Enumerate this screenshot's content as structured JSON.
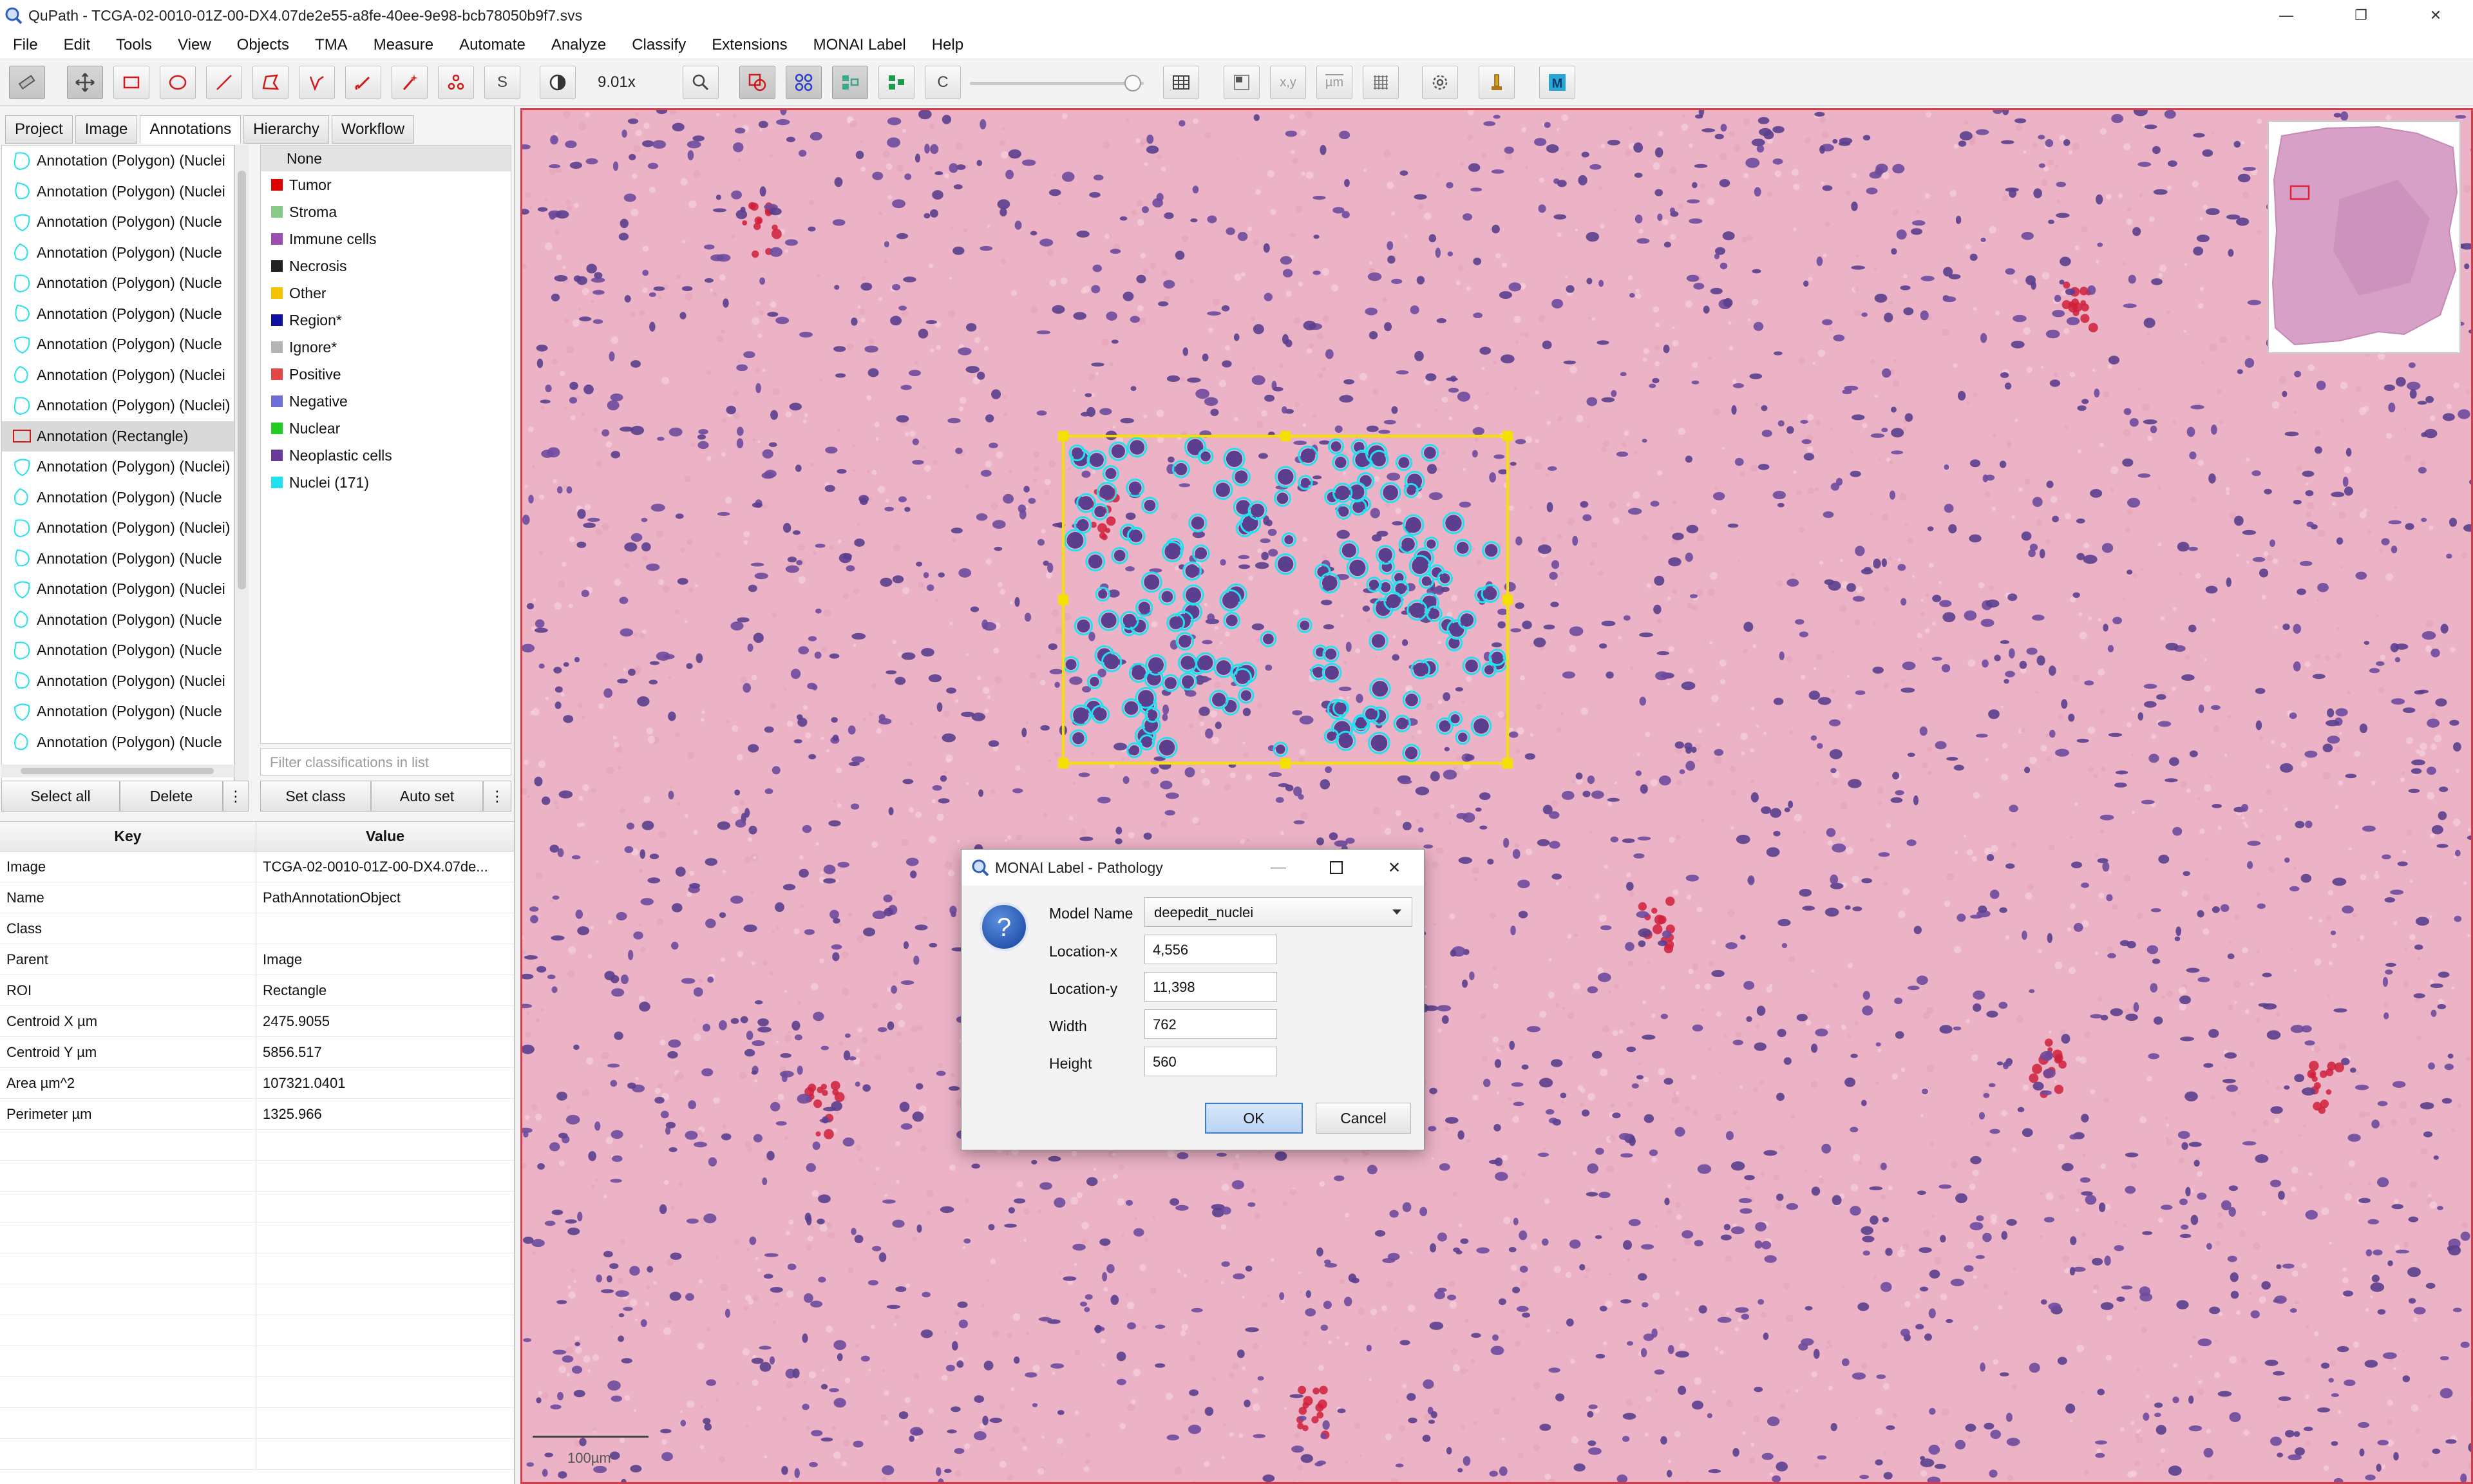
{
  "window": {
    "title": "QuPath - TCGA-02-0010-01Z-00-DX4.07de2e55-a8fe-40ee-9e98-bcb78050b9f7.svs",
    "icon": "qupath-logo-icon",
    "minimize_icon": "—",
    "maximize_icon": "❐",
    "close_icon": "✕"
  },
  "menu": [
    "File",
    "Edit",
    "Tools",
    "View",
    "Objects",
    "TMA",
    "Measure",
    "Automate",
    "Analyze",
    "Classify",
    "Extensions",
    "MONAI Label",
    "Help"
  ],
  "toolbar": {
    "zoom": "9.01x",
    "tools": [
      "move-tool",
      "rectangle-tool",
      "ellipse-tool",
      "line-tool",
      "polygon-tool",
      "polyline-tool",
      "brush-tool",
      "wand-tool",
      "points-tool"
    ],
    "letters": {
      "selection": "S",
      "counts": "C",
      "xy": "x,y",
      "um": "µm"
    }
  },
  "left_tabs": [
    "Project",
    "Image",
    "Annotations",
    "Hierarchy",
    "Workflow"
  ],
  "active_tab": "Annotations",
  "annotations": [
    "Annotation (Polygon) (Nuclei",
    "Annotation (Polygon) (Nuclei",
    "Annotation (Polygon) (Nucle",
    "Annotation (Polygon) (Nucle",
    "Annotation (Polygon) (Nucle",
    "Annotation (Polygon) (Nucle",
    "Annotation (Polygon) (Nucle",
    "Annotation (Polygon) (Nuclei",
    "Annotation (Polygon) (Nuclei)",
    "Annotation (Rectangle)",
    "Annotation (Polygon) (Nuclei)",
    "Annotation (Polygon) (Nucle",
    "Annotation (Polygon) (Nuclei)",
    "Annotation (Polygon) (Nucle",
    "Annotation (Polygon) (Nuclei",
    "Annotation (Polygon) (Nucle",
    "Annotation (Polygon) (Nucle",
    "Annotation (Polygon) (Nuclei",
    "Annotation (Polygon) (Nucle",
    "Annotation (Polygon) (Nucle"
  ],
  "selected_annotation_index": 9,
  "classes": [
    {
      "name": "None",
      "color": ""
    },
    {
      "name": "Tumor",
      "color": "#e00000"
    },
    {
      "name": "Stroma",
      "color": "#88c888"
    },
    {
      "name": "Immune cells",
      "color": "#9a4fb0"
    },
    {
      "name": "Necrosis",
      "color": "#222222"
    },
    {
      "name": "Other",
      "color": "#f5c400"
    },
    {
      "name": "Region*",
      "color": "#1010a0"
    },
    {
      "name": "Ignore*",
      "color": "#b4b4b4"
    },
    {
      "name": "Positive",
      "color": "#e04848"
    },
    {
      "name": "Negative",
      "color": "#6f6fd8"
    },
    {
      "name": "Nuclear",
      "color": "#22cc22"
    },
    {
      "name": "Neoplastic cells",
      "color": "#6a3a9a"
    },
    {
      "name": "Nuclei (171)",
      "color": "#22e0f0"
    }
  ],
  "class_filter_placeholder": "Filter classifications in list",
  "buttons": {
    "select_all": "Select all",
    "delete": "Delete",
    "more": "⋮",
    "set_class": "Set class",
    "auto_set": "Auto set",
    "more2": "⋮"
  },
  "properties": {
    "key_header": "Key",
    "value_header": "Value",
    "rows": [
      {
        "key": "Image",
        "value": "TCGA-02-0010-01Z-00-DX4.07de..."
      },
      {
        "key": "Name",
        "value": "PathAnnotationObject"
      },
      {
        "key": "Class",
        "value": ""
      },
      {
        "key": "Parent",
        "value": "Image"
      },
      {
        "key": "ROI",
        "value": "Rectangle"
      },
      {
        "key": "Centroid X µm",
        "value": "2475.9055"
      },
      {
        "key": "Centroid Y µm",
        "value": "5856.517"
      },
      {
        "key": "Area µm^2",
        "value": "107321.0401"
      },
      {
        "key": "Perimeter µm",
        "value": "1325.966"
      }
    ]
  },
  "viewer": {
    "scalebar_label": "100µm",
    "border_color": "#d33c4c",
    "roi_color": "#f5e000",
    "nuclei_color": "#22e0f0"
  },
  "dialog": {
    "title": "MONAI Label - Pathology",
    "model_label": "Model Name",
    "model_value": "deepedit_nuclei",
    "loc_x_label": "Location-x",
    "loc_x_value": "4,556",
    "loc_y_label": "Location-y",
    "loc_y_value": "11,398",
    "width_label": "Width",
    "width_value": "762",
    "height_label": "Height",
    "height_value": "560",
    "ok": "OK",
    "cancel": "Cancel",
    "help_glyph": "?"
  }
}
